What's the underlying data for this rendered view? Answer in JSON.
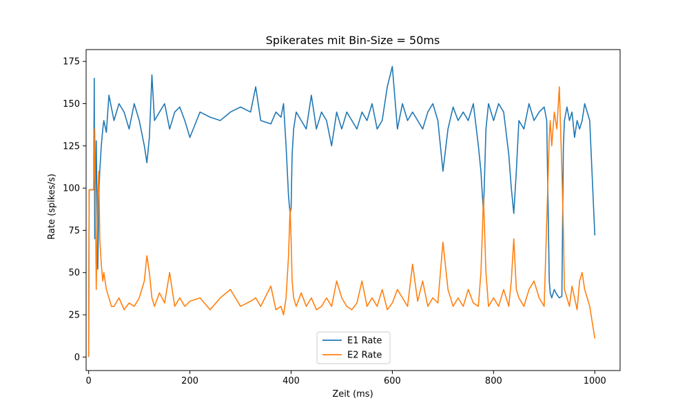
{
  "chart_data": {
    "type": "line",
    "title": "Spikerates mit Bin-Size = 50ms",
    "xlabel": "Zeit (ms)",
    "ylabel": "Rate (spikes/s)",
    "xlim": [
      -5,
      1050
    ],
    "ylim": [
      -8,
      182
    ],
    "xticks": [
      0,
      200,
      400,
      600,
      800,
      1000
    ],
    "yticks": [
      0,
      25,
      50,
      75,
      100,
      125,
      150,
      175
    ],
    "grid": false,
    "legend_position": "lower center",
    "series": [
      {
        "name": "E1 Rate",
        "color": "#1f77b4",
        "x": [
          0,
          1,
          2,
          10,
          11,
          12,
          15,
          18,
          20,
          22,
          25,
          28,
          30,
          35,
          40,
          50,
          60,
          70,
          80,
          90,
          100,
          110,
          115,
          120,
          125,
          130,
          140,
          150,
          160,
          170,
          180,
          190,
          200,
          220,
          240,
          260,
          280,
          300,
          320,
          330,
          340,
          360,
          370,
          380,
          385,
          390,
          395,
          398,
          400,
          402,
          405,
          410,
          420,
          430,
          440,
          450,
          460,
          470,
          480,
          490,
          500,
          510,
          520,
          530,
          540,
          550,
          560,
          570,
          580,
          590,
          600,
          610,
          620,
          630,
          640,
          650,
          660,
          670,
          680,
          690,
          700,
          710,
          720,
          730,
          740,
          750,
          760,
          770,
          775,
          778,
          780,
          785,
          790,
          800,
          810,
          820,
          830,
          835,
          840,
          845,
          850,
          860,
          870,
          880,
          890,
          900,
          905,
          910,
          912,
          915,
          920,
          925,
          930,
          935,
          938,
          940,
          945,
          950,
          955,
          960,
          965,
          970,
          975,
          980,
          985,
          990,
          1000
        ],
        "y": [
          0,
          99,
          99,
          99,
          165,
          70,
          128,
          52,
          95,
          110,
          125,
          135,
          140,
          133,
          155,
          140,
          150,
          145,
          135,
          150,
          140,
          125,
          115,
          130,
          167,
          140,
          145,
          150,
          135,
          145,
          148,
          140,
          130,
          145,
          142,
          140,
          145,
          148,
          145,
          160,
          140,
          138,
          145,
          142,
          150,
          125,
          95,
          85,
          88,
          120,
          135,
          145,
          140,
          135,
          155,
          135,
          145,
          140,
          125,
          145,
          135,
          145,
          140,
          135,
          145,
          140,
          150,
          135,
          140,
          160,
          172,
          135,
          150,
          140,
          145,
          140,
          135,
          145,
          150,
          140,
          110,
          135,
          148,
          140,
          145,
          140,
          150,
          125,
          110,
          95,
          85,
          135,
          150,
          140,
          150,
          145,
          120,
          100,
          85,
          110,
          140,
          135,
          150,
          140,
          145,
          148,
          140,
          45,
          38,
          35,
          40,
          37,
          35,
          36,
          125,
          140,
          148,
          140,
          145,
          130,
          140,
          135,
          140,
          150,
          145,
          140,
          72
        ]
      },
      {
        "name": "E2 Rate",
        "color": "#ff7f0e",
        "x": [
          0,
          1,
          2,
          10,
          12,
          15,
          18,
          20,
          22,
          25,
          28,
          30,
          35,
          40,
          45,
          50,
          60,
          70,
          80,
          90,
          100,
          110,
          115,
          120,
          125,
          130,
          140,
          150,
          160,
          170,
          180,
          190,
          200,
          220,
          240,
          260,
          280,
          300,
          320,
          330,
          340,
          360,
          370,
          380,
          385,
          390,
          395,
          398,
          400,
          402,
          405,
          410,
          420,
          430,
          440,
          450,
          460,
          470,
          480,
          490,
          500,
          510,
          520,
          530,
          540,
          550,
          560,
          570,
          580,
          590,
          600,
          610,
          620,
          630,
          640,
          650,
          660,
          670,
          680,
          690,
          700,
          710,
          720,
          730,
          740,
          750,
          760,
          770,
          775,
          778,
          780,
          785,
          790,
          800,
          810,
          820,
          830,
          835,
          840,
          845,
          850,
          860,
          870,
          880,
          890,
          900,
          905,
          910,
          912,
          915,
          920,
          925,
          930,
          935,
          938,
          940,
          945,
          950,
          955,
          960,
          965,
          970,
          975,
          980,
          985,
          990,
          1000
        ],
        "y": [
          0,
          99,
          99,
          99,
          135,
          40,
          95,
          110,
          70,
          55,
          45,
          50,
          40,
          35,
          30,
          30,
          35,
          28,
          32,
          30,
          35,
          45,
          60,
          50,
          35,
          30,
          38,
          32,
          50,
          30,
          35,
          30,
          33,
          35,
          28,
          35,
          40,
          30,
          33,
          35,
          30,
          42,
          28,
          30,
          25,
          35,
          60,
          88,
          70,
          45,
          35,
          30,
          38,
          30,
          35,
          28,
          30,
          35,
          30,
          45,
          35,
          30,
          28,
          32,
          45,
          30,
          35,
          30,
          40,
          28,
          32,
          40,
          35,
          30,
          55,
          33,
          45,
          30,
          35,
          32,
          68,
          40,
          30,
          35,
          30,
          40,
          32,
          30,
          50,
          75,
          95,
          50,
          30,
          35,
          30,
          40,
          30,
          45,
          70,
          40,
          35,
          30,
          40,
          45,
          35,
          30,
          80,
          130,
          140,
          125,
          145,
          135,
          160,
          110,
          75,
          40,
          35,
          30,
          42,
          35,
          28,
          45,
          50,
          40,
          35,
          30,
          11
        ]
      }
    ]
  }
}
